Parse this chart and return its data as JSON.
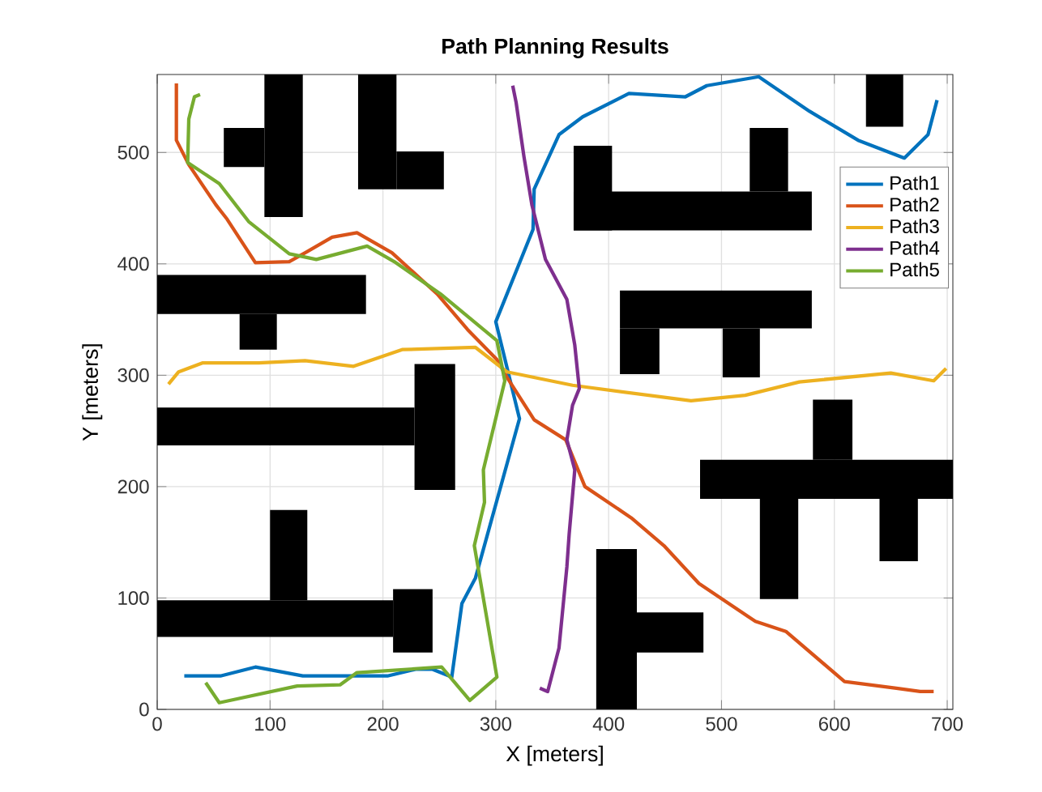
{
  "chart_data": {
    "type": "line",
    "title": "Path Planning Results",
    "xlabel": "X [meters]",
    "ylabel": "Y [meters]",
    "xlim": [
      0,
      705
    ],
    "ylim": [
      0,
      570
    ],
    "xticks": [
      0,
      100,
      200,
      300,
      400,
      500,
      600,
      700
    ],
    "yticks": [
      0,
      100,
      200,
      300,
      400,
      500
    ],
    "grid": true,
    "legend": "top right",
    "series": [
      {
        "name": "Path1",
        "color": "#0072bd",
        "x": [
          24,
          56,
          87,
          129,
          204,
          229,
          244,
          261,
          270,
          282,
          321,
          300,
          333,
          334,
          356,
          377,
          418,
          468,
          487,
          533,
          578,
          621,
          662,
          683,
          691
        ],
        "values": [
          30,
          30,
          38,
          30,
          30,
          36,
          36,
          29,
          95,
          118,
          261,
          348,
          431,
          467,
          516,
          532,
          553,
          550,
          560,
          568,
          537,
          511,
          495,
          516,
          547
        ]
      },
      {
        "name": "Path2",
        "color": "#d95319",
        "x": [
          17,
          17,
          28,
          52,
          62,
          87,
          117,
          133,
          155,
          177,
          208,
          248,
          275,
          301,
          310,
          334,
          362,
          379,
          420,
          449,
          480,
          530,
          557,
          609,
          655,
          676,
          688
        ],
        "values": [
          562,
          511,
          489,
          453,
          440,
          401,
          402,
          411,
          424,
          428,
          410,
          373,
          341,
          314,
          298,
          260,
          242,
          200,
          172,
          147,
          113,
          79,
          70,
          25,
          19,
          16,
          16
        ]
      },
      {
        "name": "Path3",
        "color": "#edb120",
        "x": [
          10,
          19,
          40,
          90,
          131,
          174,
          217,
          282,
          310,
          368,
          473,
          521,
          569,
          650,
          688,
          699
        ],
        "values": [
          292,
          303,
          311,
          311,
          313,
          308,
          323,
          325,
          303,
          291,
          277,
          282,
          294,
          302,
          295,
          306
        ]
      },
      {
        "name": "Path4",
        "color": "#7e2f8e",
        "x": [
          315,
          318,
          325,
          332,
          344,
          363,
          370,
          374,
          368,
          363,
          370,
          365,
          363,
          356,
          346,
          339
        ],
        "values": [
          560,
          545,
          496,
          453,
          404,
          368,
          327,
          288,
          273,
          242,
          215,
          157,
          128,
          55,
          16,
          19
        ]
      },
      {
        "name": "Path5",
        "color": "#77ac30",
        "x": [
          38,
          33,
          28,
          27,
          55,
          81,
          117,
          141,
          186,
          210,
          251,
          301,
          308,
          289,
          290,
          281,
          301,
          277,
          252,
          177,
          162,
          124,
          55,
          43
        ],
        "values": [
          552,
          550,
          530,
          491,
          472,
          438,
          409,
          404,
          416,
          402,
          373,
          331,
          295,
          215,
          186,
          147,
          29,
          8,
          38,
          33,
          22,
          21,
          6,
          24
        ]
      }
    ]
  }
}
